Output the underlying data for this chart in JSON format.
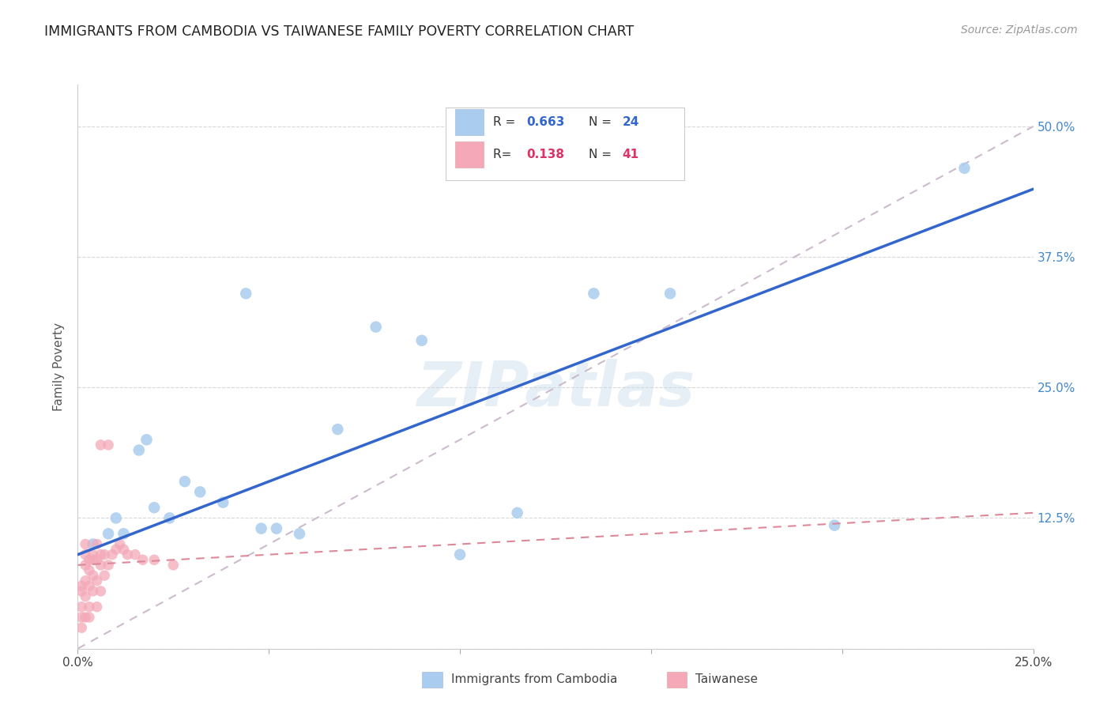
{
  "title": "IMMIGRANTS FROM CAMBODIA VS TAIWANESE FAMILY POVERTY CORRELATION CHART",
  "source": "Source: ZipAtlas.com",
  "ylabel": "Family Poverty",
  "xlim": [
    0.0,
    0.25
  ],
  "ylim": [
    0.0,
    0.54
  ],
  "xticks": [
    0.0,
    0.05,
    0.1,
    0.15,
    0.2,
    0.25
  ],
  "yticks_right": [
    0.0,
    0.125,
    0.25,
    0.375,
    0.5
  ],
  "ytick_labels_right": [
    "",
    "12.5%",
    "25.0%",
    "37.5%",
    "50.0%"
  ],
  "legend_cambodia_R": "0.663",
  "legend_cambodia_N": "24",
  "legend_taiwanese_R": "0.138",
  "legend_taiwanese_N": "41",
  "cambodia_color": "#aaccee",
  "taiwanese_color": "#f4a8b8",
  "cambodia_line_color": "#3366cc",
  "taiwanese_line_color": "#dd8899",
  "diagonal_color": "#ccbbcc",
  "watermark": "ZIPatlas",
  "cambodia_x": [
    0.004,
    0.008,
    0.01,
    0.012,
    0.016,
    0.018,
    0.02,
    0.024,
    0.028,
    0.032,
    0.038,
    0.044,
    0.048,
    0.052,
    0.058,
    0.068,
    0.078,
    0.09,
    0.1,
    0.115,
    0.135,
    0.155,
    0.198,
    0.232
  ],
  "cambodia_y": [
    0.1,
    0.11,
    0.125,
    0.11,
    0.19,
    0.2,
    0.135,
    0.125,
    0.16,
    0.15,
    0.14,
    0.34,
    0.115,
    0.115,
    0.11,
    0.21,
    0.308,
    0.295,
    0.09,
    0.13,
    0.34,
    0.34,
    0.118,
    0.46
  ],
  "taiwanese_x": [
    0.001,
    0.001,
    0.001,
    0.001,
    0.001,
    0.002,
    0.002,
    0.002,
    0.002,
    0.002,
    0.002,
    0.003,
    0.003,
    0.003,
    0.003,
    0.003,
    0.004,
    0.004,
    0.004,
    0.004,
    0.005,
    0.005,
    0.005,
    0.005,
    0.006,
    0.006,
    0.006,
    0.006,
    0.007,
    0.007,
    0.008,
    0.008,
    0.009,
    0.01,
    0.011,
    0.012,
    0.013,
    0.015,
    0.017,
    0.02,
    0.025
  ],
  "taiwanese_y": [
    0.02,
    0.03,
    0.04,
    0.055,
    0.06,
    0.03,
    0.05,
    0.065,
    0.08,
    0.09,
    0.1,
    0.03,
    0.04,
    0.06,
    0.075,
    0.085,
    0.055,
    0.07,
    0.085,
    0.09,
    0.04,
    0.065,
    0.085,
    0.1,
    0.055,
    0.08,
    0.09,
    0.195,
    0.07,
    0.09,
    0.08,
    0.195,
    0.09,
    0.095,
    0.1,
    0.095,
    0.09,
    0.09,
    0.085,
    0.085,
    0.08
  ]
}
